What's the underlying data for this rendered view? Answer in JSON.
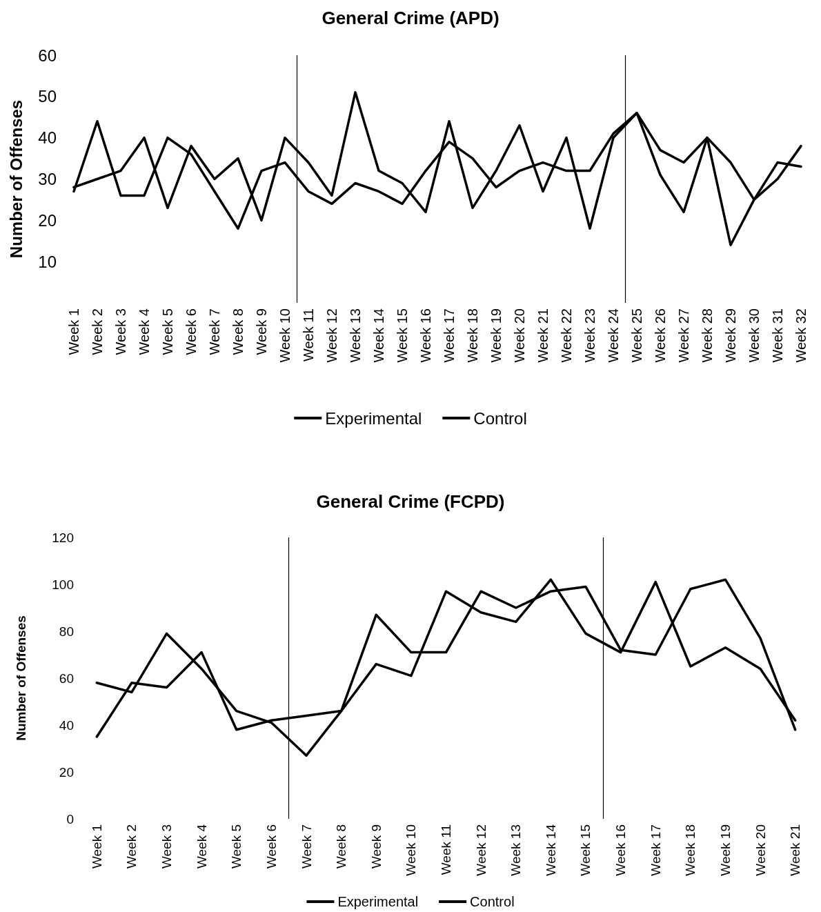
{
  "chart_data": [
    {
      "type": "line",
      "title": "General Crime (APD)",
      "ylabel": "Number of Offenses",
      "categories": [
        "Week 1",
        "Week 2",
        "Week 3",
        "Week 4",
        "Week 5",
        "Week 6",
        "Week 7",
        "Week 8",
        "Week 9",
        "Week 10",
        "Week 11",
        "Week 12",
        "Week 13",
        "Week 14",
        "Week 15",
        "Week 16",
        "Week 17",
        "Week 18",
        "Week 19",
        "Week 20",
        "Week 21",
        "Week 22",
        "Week 23",
        "Week 24",
        "Week 25",
        "Week 26",
        "Week 27",
        "Week 28",
        "Week 29",
        "Week 30",
        "Week 31",
        "Week 32"
      ],
      "ylim": [
        0,
        60
      ],
      "yticks": [
        10,
        20,
        30,
        40,
        50,
        60
      ],
      "series": [
        {
          "name": "Experimental",
          "color": "#000000",
          "values": [
            27,
            44,
            26,
            26,
            40,
            36,
            27,
            18,
            32,
            34,
            27,
            24,
            29,
            27,
            24,
            32,
            39,
            35,
            28,
            32,
            34,
            32,
            32,
            41,
            46,
            37,
            34,
            40,
            34,
            25,
            30,
            38
          ]
        },
        {
          "name": "Control",
          "color": "#000000",
          "values": [
            28,
            30,
            32,
            40,
            23,
            38,
            30,
            35,
            20,
            40,
            34,
            26,
            51,
            32,
            29,
            22,
            44,
            23,
            32,
            43,
            27,
            40,
            18,
            40,
            46,
            31,
            22,
            40,
            14,
            25,
            34,
            33
          ]
        }
      ],
      "legend": "bottom",
      "grid": false,
      "marker": "none",
      "line_style": "solid"
    },
    {
      "type": "line",
      "title": "General Crime (FCPD)",
      "ylabel": "Number of Offenses",
      "categories": [
        "Week 1",
        "Week 2",
        "Week 3",
        "Week 4",
        "Week 5",
        "Week 6",
        "Week 7",
        "Week 8",
        "Week 9",
        "Week 10",
        "Week 11",
        "Week 12",
        "Week 13",
        "Week 14",
        "Week 15",
        "Week 16",
        "Week 17",
        "Week 18",
        "Week 19",
        "Week 20",
        "Week 21"
      ],
      "ylim": [
        0,
        120
      ],
      "yticks": [
        0,
        20,
        40,
        60,
        80,
        100,
        120
      ],
      "series": [
        {
          "name": "Experimental",
          "color": "#000000",
          "values": [
            58,
            54,
            79,
            64,
            46,
            41,
            27,
            46,
            87,
            71,
            71,
            97,
            90,
            97,
            99,
            72,
            70,
            98,
            102,
            77,
            38
          ]
        },
        {
          "name": "Control",
          "color": "#000000",
          "values": [
            35,
            58,
            56,
            71,
            38,
            42,
            44,
            46,
            66,
            61,
            97,
            88,
            84,
            102,
            79,
            71,
            101,
            65,
            73,
            64,
            42
          ]
        }
      ],
      "legend": "bottom",
      "grid": false,
      "marker": "none",
      "line_style": "solid"
    }
  ]
}
